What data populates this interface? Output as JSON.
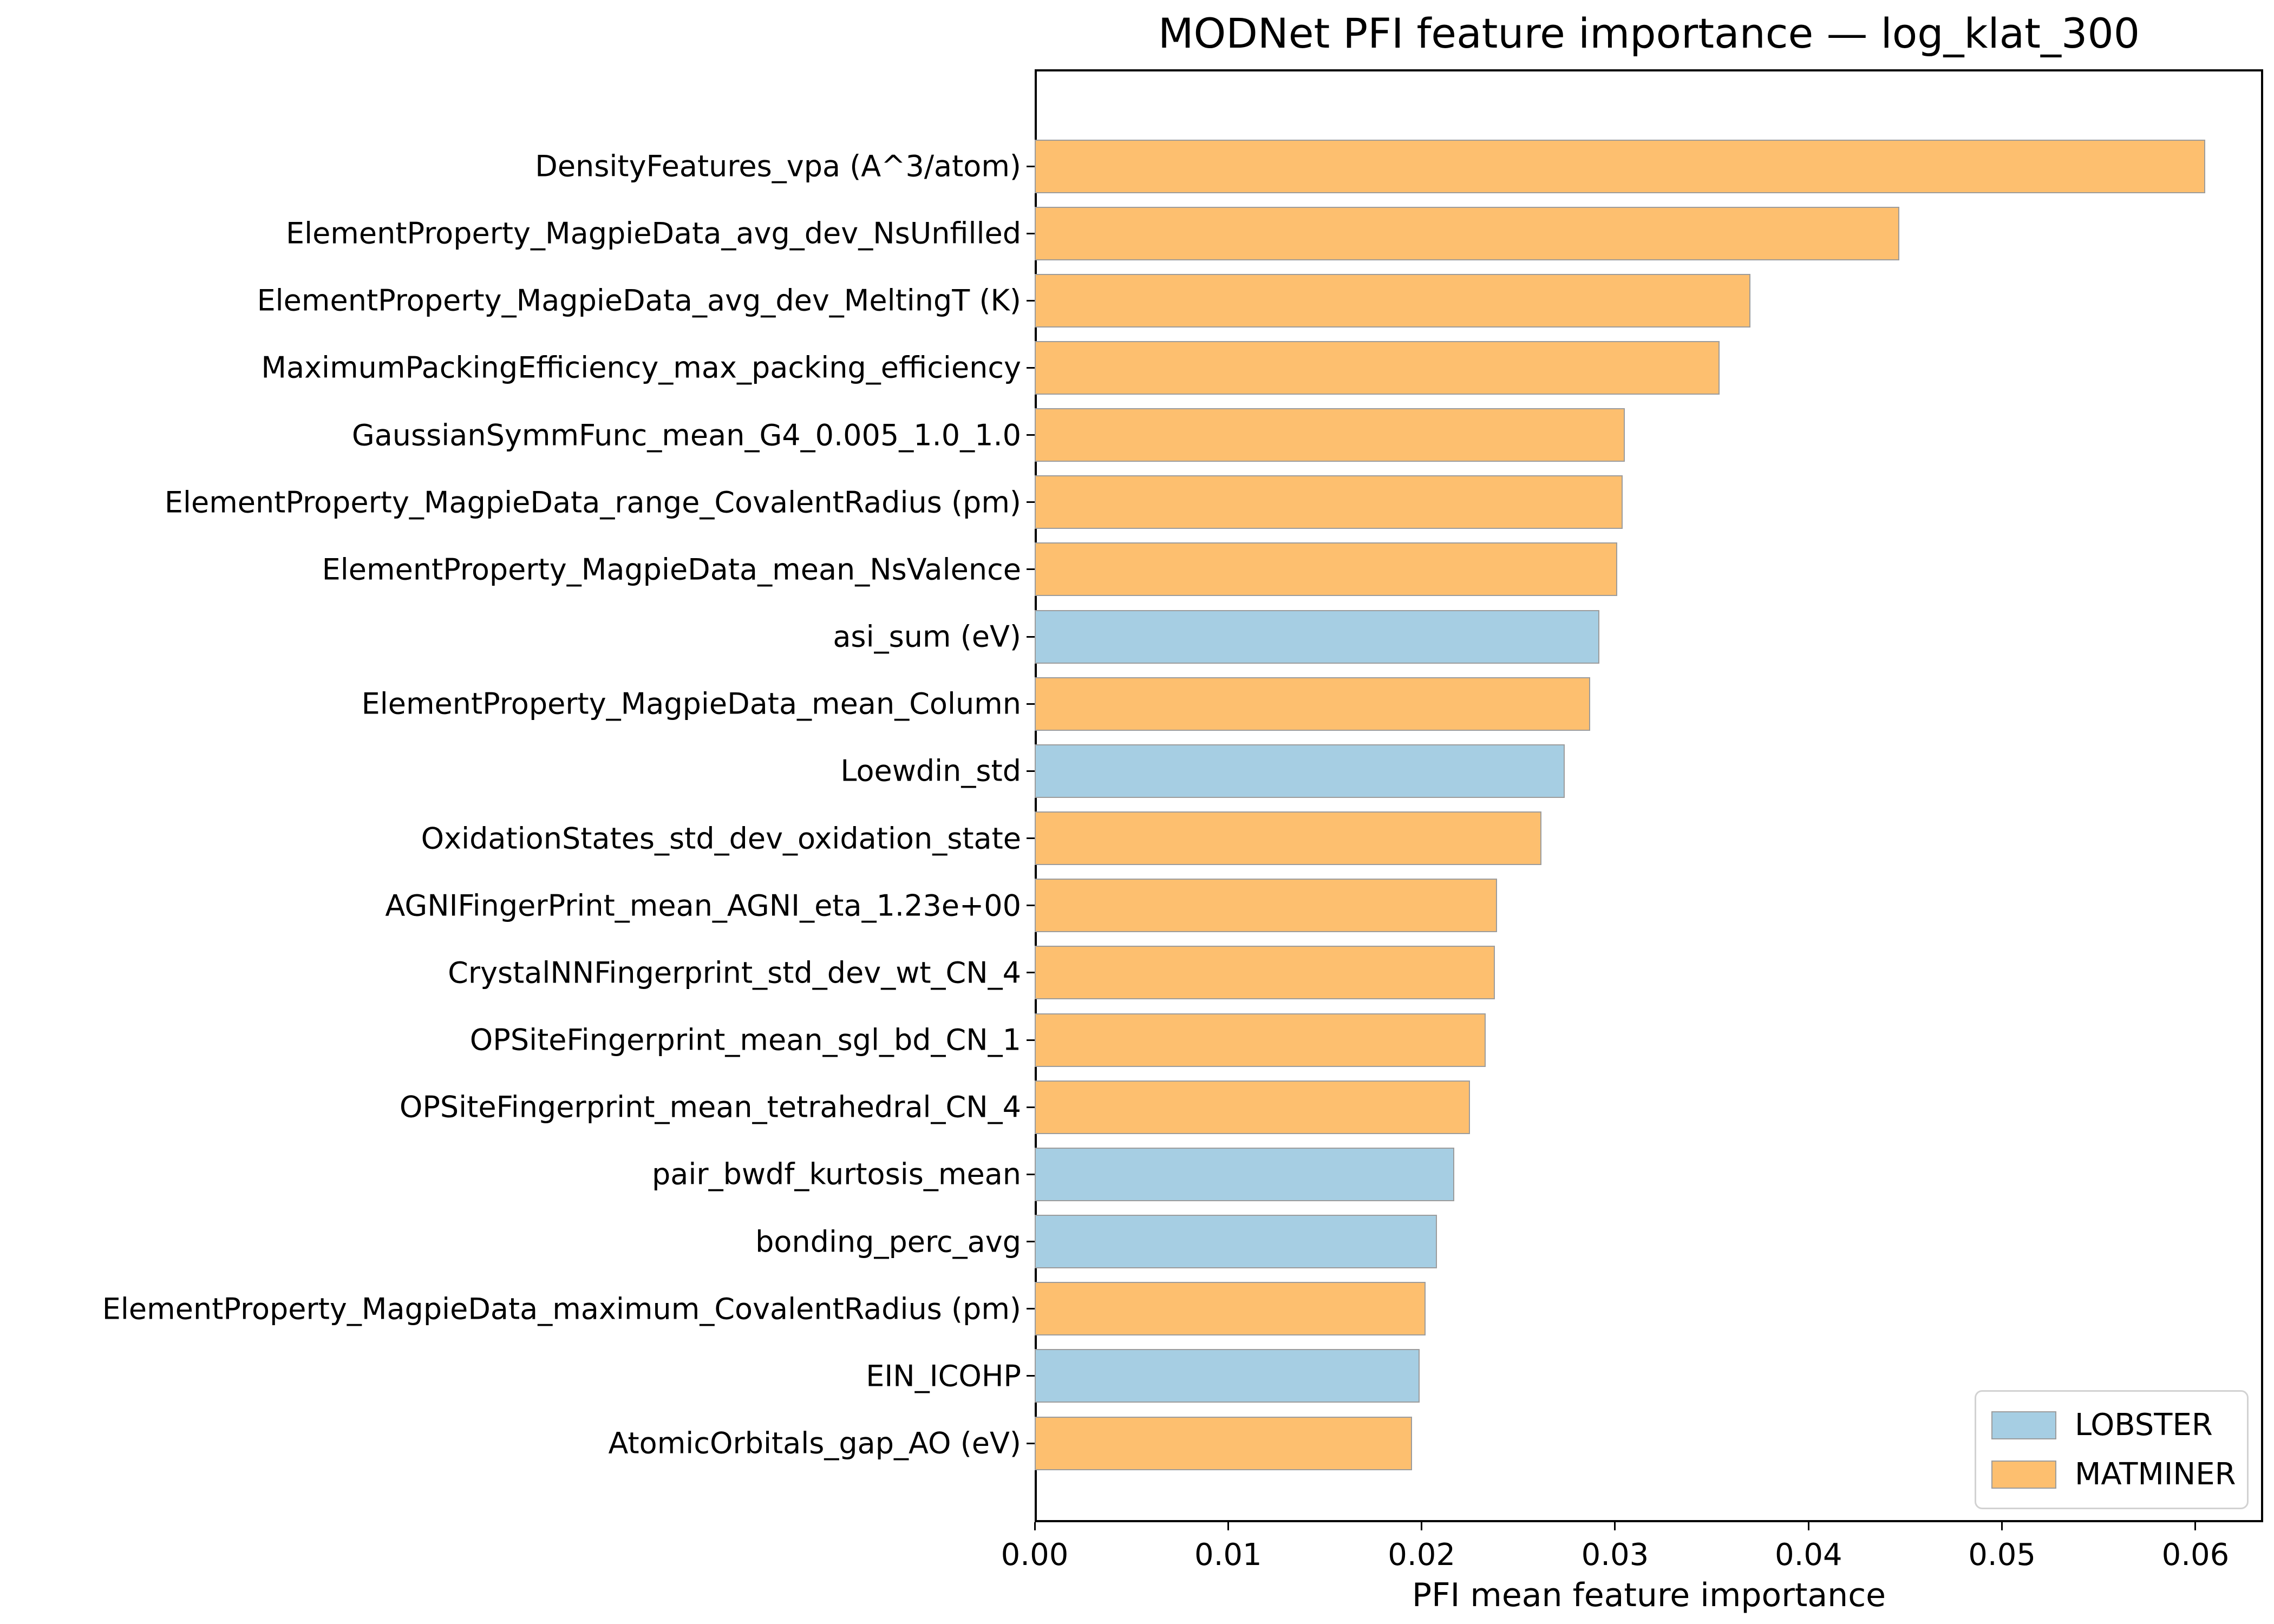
{
  "chart_data": {
    "type": "bar",
    "orientation": "horizontal",
    "title": "MODNet PFI feature importance — log_klat_300",
    "xlabel": "PFI mean feature importance",
    "xlim": [
      0,
      0.0635
    ],
    "xticks": [
      0,
      0.01,
      0.02,
      0.03,
      0.04,
      0.05,
      0.06
    ],
    "xtick_labels": [
      "0.00",
      "0.01",
      "0.02",
      "0.03",
      "0.04",
      "0.05",
      "0.06"
    ],
    "grid": false,
    "bar_edge_color": "#9c9c9c",
    "legend": {
      "position": "lower right",
      "entries": [
        {
          "label": "LOBSTER",
          "color": "#a6cee3"
        },
        {
          "label": "MATMINER",
          "color": "#fdbf6f"
        }
      ]
    },
    "bars": [
      {
        "label": "DensityFeatures_vpa (A^3/atom)",
        "value": 0.0605,
        "group": "MATMINER"
      },
      {
        "label": "ElementProperty_MagpieData_avg_dev_NsUnfilled",
        "value": 0.0447,
        "group": "MATMINER"
      },
      {
        "label": "ElementProperty_MagpieData_avg_dev_MeltingT (K)",
        "value": 0.037,
        "group": "MATMINER"
      },
      {
        "label": "MaximumPackingEfficiency_max_packing_efficiency",
        "value": 0.0354,
        "group": "MATMINER"
      },
      {
        "label": "GaussianSymmFunc_mean_G4_0.005_1.0_1.0",
        "value": 0.0305,
        "group": "MATMINER"
      },
      {
        "label": "ElementProperty_MagpieData_range_CovalentRadius (pm)",
        "value": 0.0304,
        "group": "MATMINER"
      },
      {
        "label": "ElementProperty_MagpieData_mean_NsValence",
        "value": 0.0301,
        "group": "MATMINER"
      },
      {
        "label": "asi_sum (eV)",
        "value": 0.0292,
        "group": "LOBSTER"
      },
      {
        "label": "ElementProperty_MagpieData_mean_Column",
        "value": 0.0287,
        "group": "MATMINER"
      },
      {
        "label": "Loewdin_std",
        "value": 0.0274,
        "group": "LOBSTER"
      },
      {
        "label": "OxidationStates_std_dev_oxidation_state",
        "value": 0.0262,
        "group": "MATMINER"
      },
      {
        "label": "AGNIFingerPrint_mean_AGNI_eta_1.23e+00",
        "value": 0.0239,
        "group": "MATMINER"
      },
      {
        "label": "CrystalNNFingerprint_std_dev_wt_CN_4",
        "value": 0.0238,
        "group": "MATMINER"
      },
      {
        "label": "OPSiteFingerprint_mean_sgl_bd_CN_1",
        "value": 0.0233,
        "group": "MATMINER"
      },
      {
        "label": "OPSiteFingerprint_mean_tetrahedral_CN_4",
        "value": 0.0225,
        "group": "MATMINER"
      },
      {
        "label": "pair_bwdf_kurtosis_mean",
        "value": 0.0217,
        "group": "LOBSTER"
      },
      {
        "label": "bonding_perc_avg",
        "value": 0.0208,
        "group": "LOBSTER"
      },
      {
        "label": "ElementProperty_MagpieData_maximum_CovalentRadius (pm)",
        "value": 0.0202,
        "group": "MATMINER"
      },
      {
        "label": "EIN_ICOHP",
        "value": 0.0199,
        "group": "LOBSTER"
      },
      {
        "label": "AtomicOrbitals_gap_AO (eV)",
        "value": 0.0195,
        "group": "MATMINER"
      }
    ]
  }
}
